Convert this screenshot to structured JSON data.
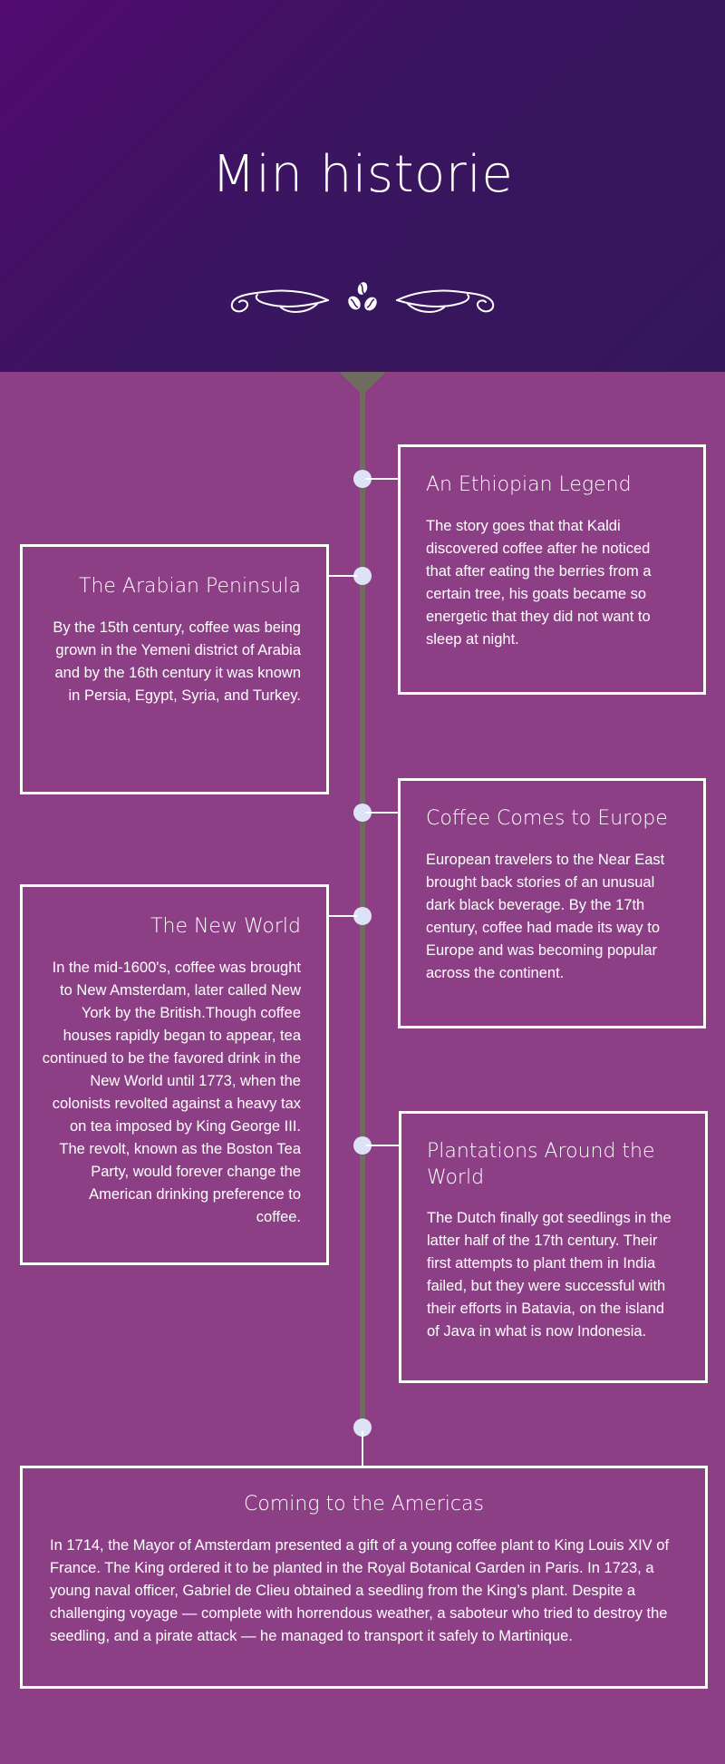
{
  "hero": {
    "title": "Min historie",
    "ornament_icon": "coffee-beans-flourish-icon"
  },
  "colors": {
    "hero_gradient_start": "#520a6f",
    "hero_gradient_end": "#34175a",
    "page_background": "#8d3f86",
    "timeline_line": "#6f6b5e",
    "dot": "#dde3f6",
    "card_border": "#ffffff"
  },
  "timeline": [
    {
      "title": "An Ethiopian Legend",
      "text": "The story goes that that Kaldi discovered coffee after he noticed that after eating the berries from a certain tree, his goats became so energetic that they did not want to sleep at night."
    },
    {
      "title": "The Arabian Peninsula",
      "text": "By the 15th century, coffee was being grown in the Yemeni district of Arabia and by the 16th century it was known in Persia, Egypt, Syria, and Turkey."
    },
    {
      "title": "Coffee Comes to Europe",
      "text": "European travelers to the Near East brought back stories of an unusual dark black beverage. By the 17th century, coffee had made its way to Europe and was becoming popular across the continent."
    },
    {
      "title": "The New World",
      "text": "In the mid-1600's, coffee was brought to New Amsterdam, later called New York by the British.Though coffee houses rapidly began to appear, tea continued to be the favored drink in the New World until 1773, when the colonists revolted against a heavy tax on tea imposed by King George III. The revolt, known as the Boston Tea Party, would forever change the American drinking preference to coffee."
    },
    {
      "title": "Plantations Around the World",
      "text": "The Dutch finally got seedlings in the latter half of the 17th century. Their first attempts to plant them in India failed, but they were successful with their efforts in Batavia, on the island of Java in what is now Indonesia."
    },
    {
      "title": "Coming to the Americas",
      "text": "In 1714, the Mayor of Amsterdam presented a gift of a young coffee plant to King Louis XIV of France. The King ordered it to be planted in the Royal Botanical Garden in Paris. In 1723, a young naval officer, Gabriel de Clieu obtained a seedling from the King’s plant. Despite a challenging voyage — complete with horrendous weather, a saboteur who tried to destroy the seedling, and a pirate attack — he managed to transport it safely to Martinique."
    }
  ]
}
